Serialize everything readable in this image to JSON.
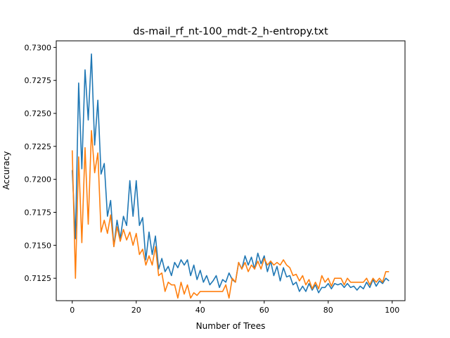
{
  "chart_data": {
    "type": "line",
    "title": "ds-mail_rf_nt-100_mdt-2_h-entropy.txt",
    "xlabel": "Number of Trees",
    "ylabel": "Accuracy",
    "xlim": [
      -5,
      104
    ],
    "ylim": [
      0.7108,
      0.7305
    ],
    "xticks": [
      0,
      20,
      40,
      60,
      80,
      100
    ],
    "xtick_labels": [
      "0",
      "20",
      "40",
      "60",
      "80",
      "100"
    ],
    "yticks": [
      0.7125,
      0.715,
      0.7175,
      0.72,
      0.7225,
      0.725,
      0.7275,
      0.73
    ],
    "ytick_labels": [
      "0.7125",
      "0.7150",
      "0.7175",
      "0.7200",
      "0.7225",
      "0.7250",
      "0.7275",
      "0.7300"
    ],
    "grid": false,
    "legend": "none",
    "series": [
      {
        "color": "#1f77b4",
        "x": [
          0,
          1,
          2,
          3,
          4,
          5,
          6,
          7,
          8,
          9,
          10,
          11,
          12,
          13,
          14,
          15,
          16,
          17,
          18,
          19,
          20,
          21,
          22,
          23,
          24,
          25,
          26,
          27,
          28,
          29,
          30,
          31,
          32,
          33,
          34,
          35,
          36,
          37,
          38,
          39,
          40,
          41,
          42,
          43,
          44,
          45,
          46,
          47,
          48,
          49,
          50,
          51,
          52,
          53,
          54,
          55,
          56,
          57,
          58,
          59,
          60,
          61,
          62,
          63,
          64,
          65,
          66,
          67,
          68,
          69,
          70,
          71,
          72,
          73,
          74,
          75,
          76,
          77,
          78,
          79,
          80,
          81,
          82,
          83,
          84,
          85,
          86,
          87,
          88,
          89,
          90,
          91,
          92,
          93,
          94,
          95,
          96,
          97,
          98,
          99
        ],
        "values": [
          0.7207,
          0.7155,
          0.7273,
          0.7208,
          0.7283,
          0.7245,
          0.7295,
          0.7226,
          0.726,
          0.7204,
          0.7212,
          0.7172,
          0.7184,
          0.7149,
          0.7169,
          0.7155,
          0.7172,
          0.7165,
          0.7199,
          0.7172,
          0.7199,
          0.7165,
          0.7171,
          0.7139,
          0.716,
          0.7143,
          0.7157,
          0.7132,
          0.714,
          0.713,
          0.7134,
          0.7127,
          0.7137,
          0.7133,
          0.7139,
          0.7135,
          0.7139,
          0.7127,
          0.7135,
          0.7124,
          0.7131,
          0.7122,
          0.7127,
          0.712,
          0.7123,
          0.7127,
          0.7118,
          0.7124,
          0.7122,
          0.7129,
          0.7124,
          0.7122,
          0.7137,
          0.7132,
          0.7142,
          0.7135,
          0.7141,
          0.7132,
          0.7144,
          0.7136,
          0.7142,
          0.713,
          0.7138,
          0.7127,
          0.7134,
          0.7123,
          0.7133,
          0.7126,
          0.7127,
          0.712,
          0.7122,
          0.7115,
          0.7119,
          0.7115,
          0.7121,
          0.7116,
          0.712,
          0.7114,
          0.7118,
          0.7118,
          0.7121,
          0.7117,
          0.7121,
          0.712,
          0.7121,
          0.7118,
          0.7121,
          0.7118,
          0.7119,
          0.7116,
          0.7119,
          0.7117,
          0.7122,
          0.7118,
          0.7124,
          0.7119,
          0.7123,
          0.7121,
          0.7125,
          0.7123
        ]
      },
      {
        "color": "#ff7f0e",
        "x": [
          0,
          1,
          2,
          3,
          4,
          5,
          6,
          7,
          8,
          9,
          10,
          11,
          12,
          13,
          14,
          15,
          16,
          17,
          18,
          19,
          20,
          21,
          22,
          23,
          24,
          25,
          26,
          27,
          28,
          29,
          30,
          31,
          32,
          33,
          34,
          35,
          36,
          37,
          38,
          39,
          40,
          41,
          42,
          43,
          44,
          45,
          46,
          47,
          48,
          49,
          50,
          51,
          52,
          53,
          54,
          55,
          56,
          57,
          58,
          59,
          60,
          61,
          62,
          63,
          64,
          65,
          66,
          67,
          68,
          69,
          70,
          71,
          72,
          73,
          74,
          75,
          76,
          77,
          78,
          79,
          80,
          81,
          82,
          83,
          84,
          85,
          86,
          87,
          88,
          89,
          90,
          91,
          92,
          93,
          94,
          95,
          96,
          97,
          98,
          99
        ],
        "values": [
          0.7222,
          0.7125,
          0.7217,
          0.7152,
          0.7224,
          0.7166,
          0.7237,
          0.7205,
          0.722,
          0.716,
          0.7169,
          0.7159,
          0.7173,
          0.7149,
          0.7164,
          0.7153,
          0.7162,
          0.7154,
          0.716,
          0.715,
          0.7159,
          0.7143,
          0.7147,
          0.7135,
          0.7142,
          0.7135,
          0.7149,
          0.7127,
          0.7129,
          0.7115,
          0.7122,
          0.712,
          0.712,
          0.711,
          0.7122,
          0.7113,
          0.712,
          0.711,
          0.7114,
          0.7112,
          0.7115,
          0.7115,
          0.7115,
          0.7115,
          0.7115,
          0.7115,
          0.7115,
          0.7115,
          0.712,
          0.711,
          0.7125,
          0.7122,
          0.7137,
          0.7132,
          0.7137,
          0.713,
          0.7135,
          0.7132,
          0.7138,
          0.7132,
          0.714,
          0.7135,
          0.7138,
          0.7135,
          0.7137,
          0.7135,
          0.7139,
          0.7135,
          0.7133,
          0.7127,
          0.7128,
          0.7123,
          0.7127,
          0.712,
          0.7124,
          0.7117,
          0.7122,
          0.7117,
          0.7127,
          0.7122,
          0.7125,
          0.7119,
          0.7125,
          0.7125,
          0.7125,
          0.712,
          0.7125,
          0.7122,
          0.7122,
          0.7122,
          0.7122,
          0.7122,
          0.7125,
          0.712,
          0.7125,
          0.7122,
          0.7125,
          0.7122,
          0.713,
          0.713
        ]
      }
    ]
  }
}
